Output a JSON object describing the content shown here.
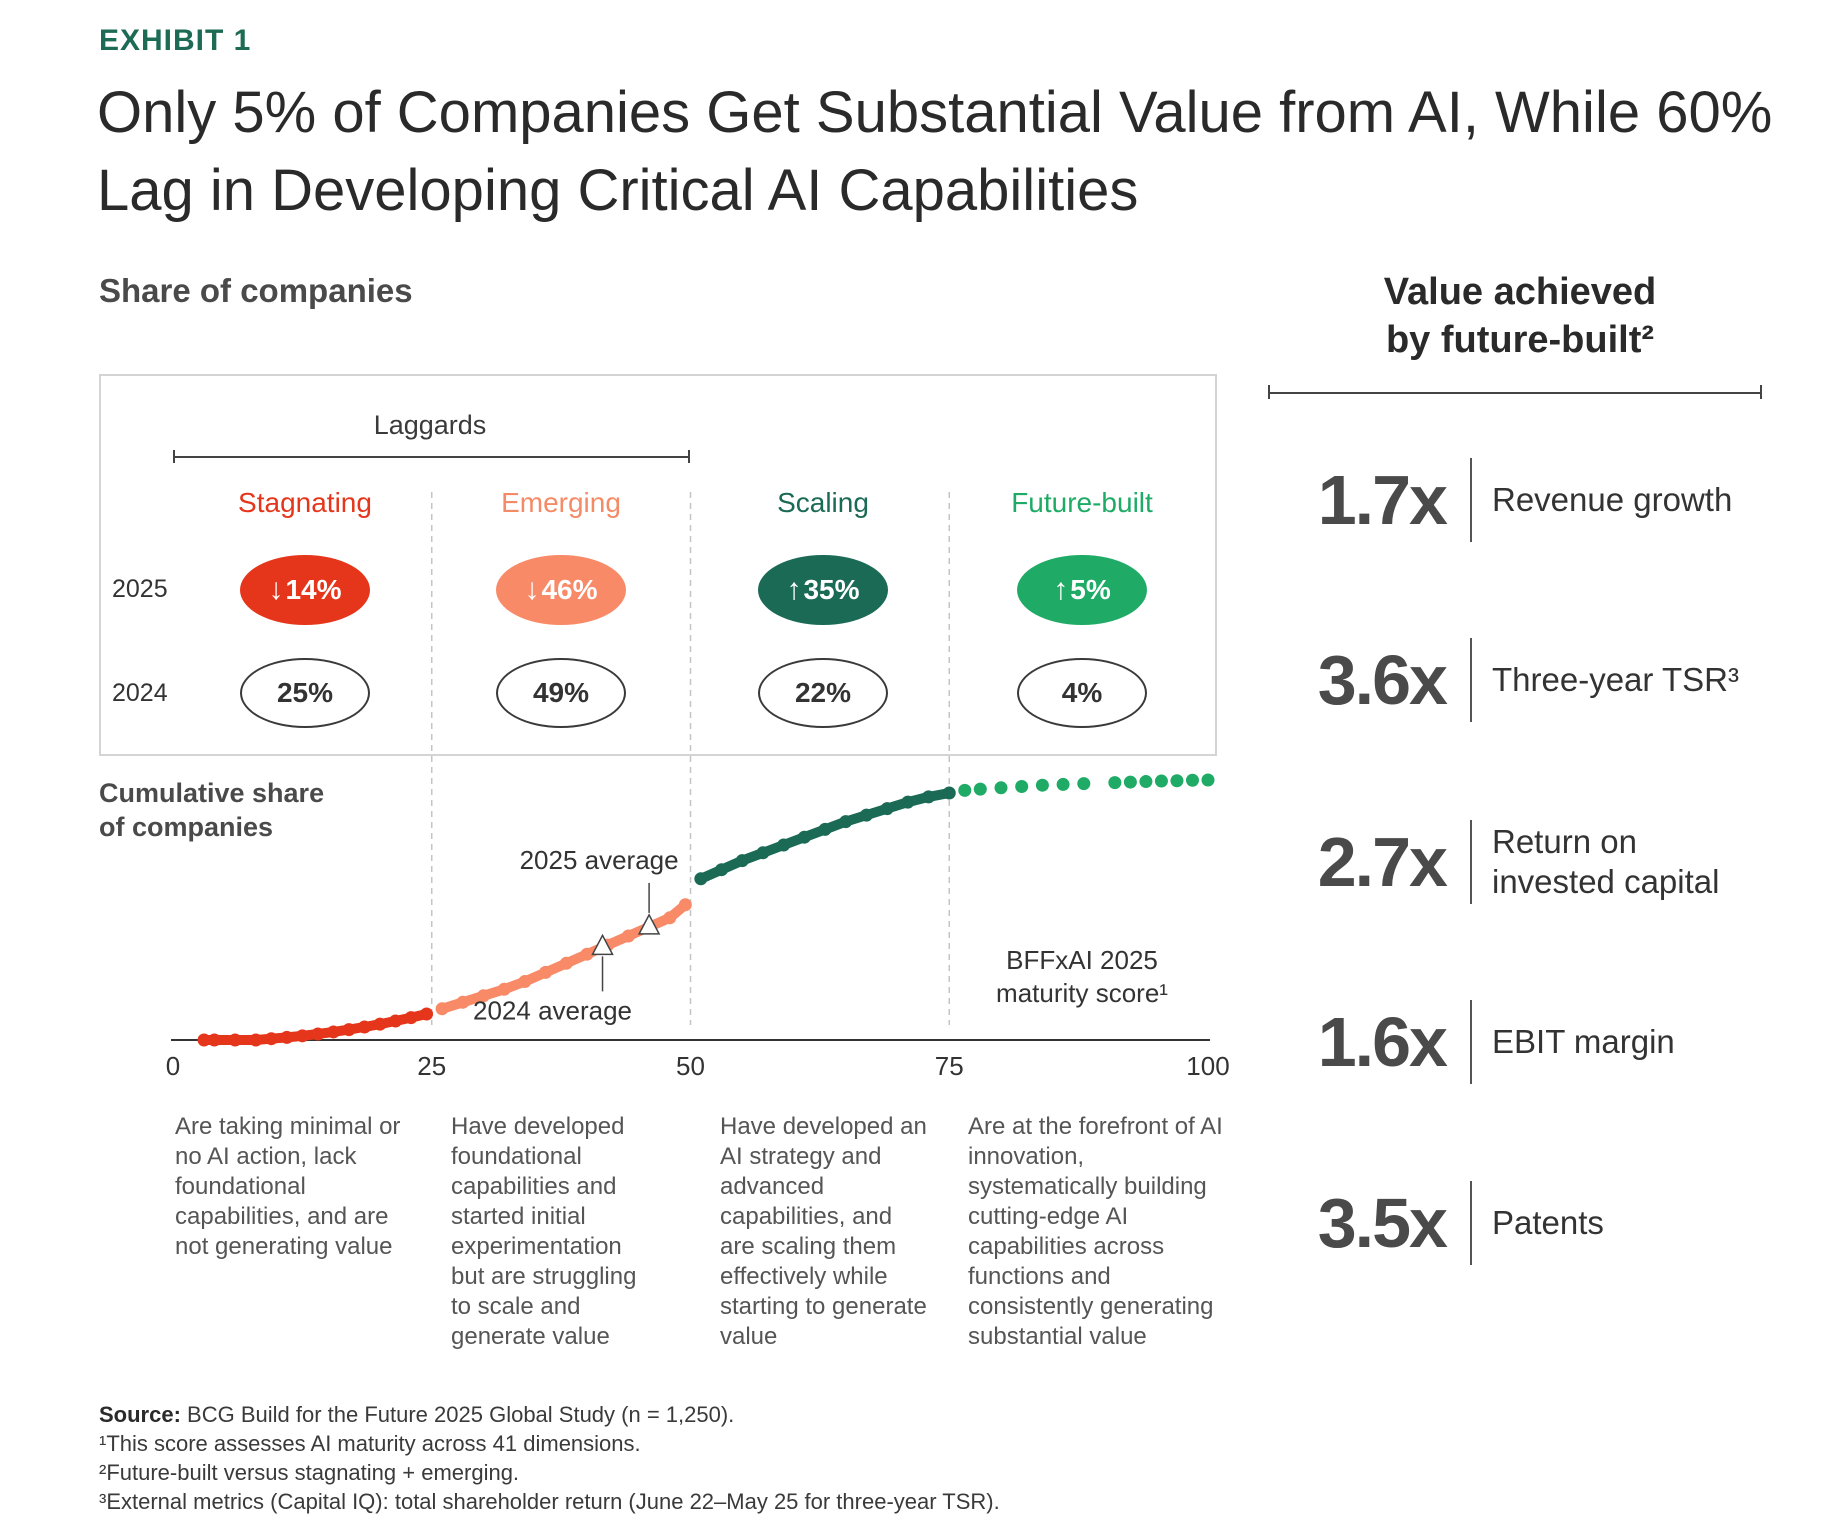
{
  "exhibit": "EXHIBIT 1",
  "title": "Only 5% of Companies Get Substantial Value from AI, While 60% Lag in Developing Critical AI Capabilities",
  "share_heading": "Share of companies",
  "laggards_label": "Laggards",
  "years": [
    "2025",
    "2024"
  ],
  "colors": {
    "stagnating": "#e5361b",
    "emerging": "#f88a68",
    "scaling": "#1a6a55",
    "future_built": "#1fab66",
    "exhibit": "#1d6b55"
  },
  "segments": [
    {
      "name": "Stagnating",
      "share_2025": "14%",
      "share_2024": "25%",
      "trend": "down",
      "trend_icon": "arrow-down-icon",
      "description": "Are taking minimal or no AI action, lack foundational capabilities, and are not generating value"
    },
    {
      "name": "Emerging",
      "share_2025": "46%",
      "share_2024": "49%",
      "trend": "down",
      "trend_icon": "arrow-down-icon",
      "description": "Have developed foundational capabilities and started initial experimentation but are struggling to scale and generate value"
    },
    {
      "name": "Scaling",
      "share_2025": "35%",
      "share_2024": "22%",
      "trend": "up",
      "trend_icon": "arrow-up-icon",
      "description": "Have developed an AI strategy and advanced capabilities, and are scaling them effectively while starting to generate value"
    },
    {
      "name": "Future-built",
      "share_2025": "5%",
      "share_2024": "4%",
      "trend": "up",
      "trend_icon": "arrow-up-icon",
      "description": "Are at the forefront of AI innovation, systematically building cutting-edge AI capabilities across functions and consistently generating substantial value"
    }
  ],
  "cumulative_label_line1": "Cumulative share",
  "cumulative_label_line2": "of companies",
  "chart_data": {
    "type": "scatter",
    "xlabel_line1": "BFFxAI 2025",
    "xlabel_line2": "maturity score¹",
    "xlim": [
      0,
      100
    ],
    "ylim": [
      0,
      100
    ],
    "x_ticks": [
      "0",
      "25",
      "50",
      "75",
      "100"
    ],
    "annotations": [
      {
        "label": "2025 average",
        "x": 46
      },
      {
        "label": "2024 average",
        "x": 41.5
      }
    ],
    "series": [
      {
        "segment": "Stagnating",
        "x": [
          3,
          4,
          6,
          8,
          9.5,
          11,
          12.5,
          14,
          15.5,
          17,
          18.5,
          20,
          21.5,
          23,
          24.5
        ],
        "y": [
          0,
          0,
          0,
          0,
          0.5,
          1,
          1.6,
          2.3,
          3.1,
          4,
          5,
          6.1,
          7.3,
          8.6,
          10
        ]
      },
      {
        "segment": "Emerging",
        "x": [
          26,
          28,
          30,
          32,
          34,
          36,
          38,
          40,
          42,
          44,
          46,
          48,
          49.5
        ],
        "y": [
          12,
          14.5,
          17,
          19.5,
          22.5,
          26,
          29.5,
          33,
          36.5,
          40,
          43.5,
          47,
          52
        ]
      },
      {
        "segment": "Scaling",
        "x": [
          51,
          53,
          55,
          57,
          59,
          61,
          63,
          65,
          67,
          69,
          71,
          73,
          75
        ],
        "y": [
          62,
          65.5,
          69,
          72,
          75,
          78,
          81,
          84,
          86.5,
          89,
          91.5,
          93.5,
          95
        ]
      },
      {
        "segment": "Future-built",
        "x": [
          76.5,
          78,
          80,
          82,
          84,
          86,
          88,
          91,
          92.5,
          94,
          95.5,
          97,
          98.5,
          100
        ],
        "y": [
          96,
          96.5,
          97,
          97.5,
          98,
          98.3,
          98.6,
          99,
          99.2,
          99.4,
          99.6,
          99.7,
          99.9,
          100
        ]
      }
    ]
  },
  "value_heading_line1": "Value achieved",
  "value_heading_line2": "by future-built²",
  "metrics": [
    {
      "value": "1.7x",
      "label": "Revenue growth"
    },
    {
      "value": "3.6x",
      "label": "Three-year TSR³"
    },
    {
      "value": "2.7x",
      "label": "Return on invested capital"
    },
    {
      "value": "1.6x",
      "label": "EBIT margin"
    },
    {
      "value": "3.5x",
      "label": "Patents"
    }
  ],
  "source_label": "Source:",
  "source_text": " BCG Build for the Future 2025 Global Study (n = 1,250).",
  "footnotes": [
    "¹This score assesses AI maturity across 41 dimensions.",
    "²Future-built versus stagnating + emerging.",
    "³External metrics (Capital IQ): total shareholder return (June 22–May 25 for three-year TSR)."
  ]
}
